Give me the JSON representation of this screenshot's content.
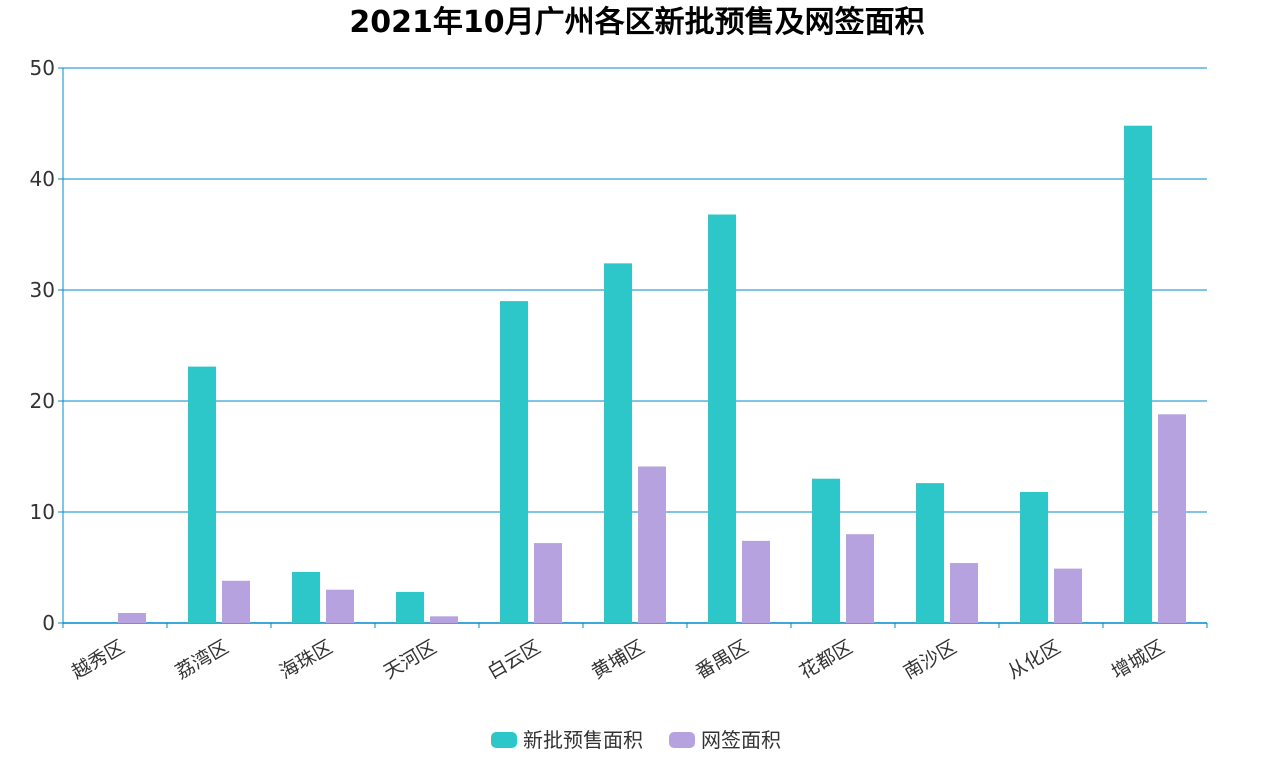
{
  "chart_data": {
    "type": "bar",
    "title": "2021年10月广州各区新批预售及网签面积",
    "xlabel": "",
    "ylabel": "",
    "ylim": [
      0,
      50
    ],
    "yticks": [
      "0",
      "10",
      "20",
      "30",
      "40",
      "50"
    ],
    "grid": true,
    "legend_position": "bottom",
    "categories": [
      "越秀区",
      "荔湾区",
      "海珠区",
      "天河区",
      "白云区",
      "黄埔区",
      "番禺区",
      "花都区",
      "南沙区",
      "从化区",
      "增城区"
    ],
    "series": [
      {
        "name": "新批预售面积",
        "color": "#2ec7c9",
        "values": [
          0,
          23.1,
          4.6,
          2.8,
          29.0,
          32.4,
          36.8,
          13.0,
          12.6,
          11.8,
          44.8
        ]
      },
      {
        "name": "网签面积",
        "color": "#b6a2de",
        "values": [
          0.9,
          3.8,
          3.0,
          0.6,
          7.2,
          14.1,
          7.4,
          8.0,
          5.4,
          4.9,
          18.8
        ]
      }
    ],
    "colors": {
      "axis": "#008acd",
      "grid": "#008acd"
    }
  }
}
